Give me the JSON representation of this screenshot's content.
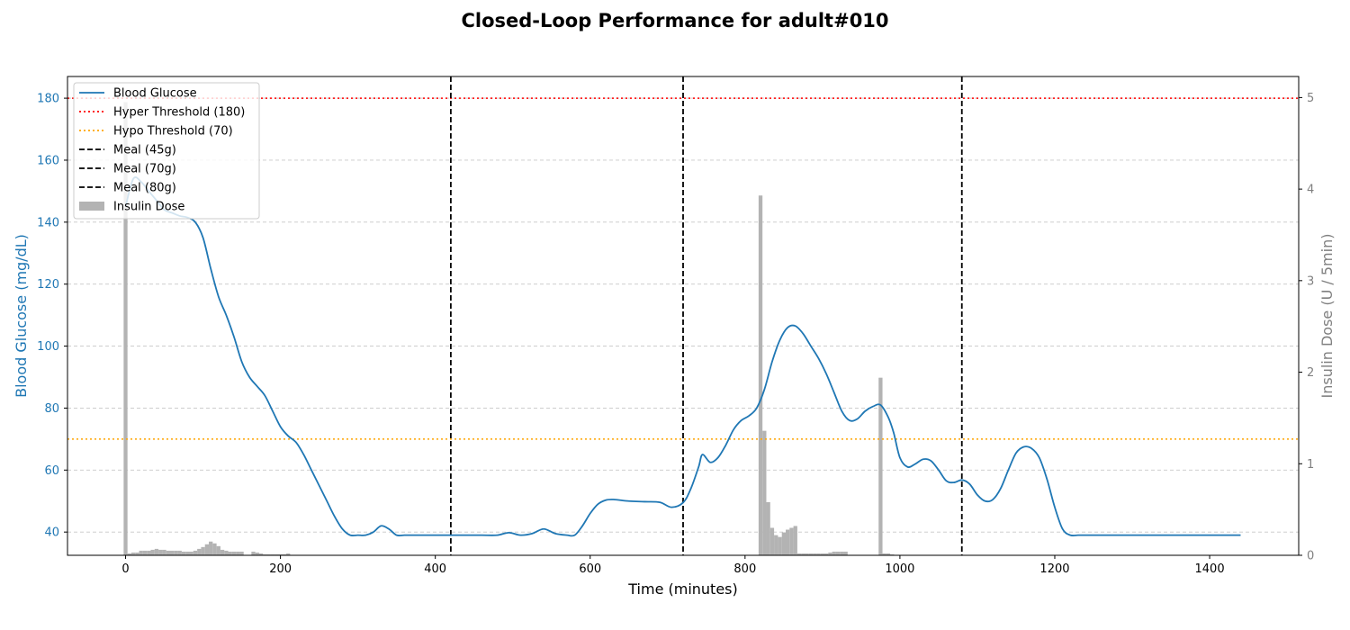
{
  "chart_data": {
    "type": "line",
    "title": "Closed-Loop Performance for adult#010",
    "xlabel": "Time (minutes)",
    "ylabel": "Blood Glucose (mg/dL)",
    "y2label": "Insulin Dose (U / 5min)",
    "xlim": [
      -75,
      1515
    ],
    "ylim": [
      32.5,
      187
    ],
    "y2lim": [
      0,
      5.23
    ],
    "x_ticks": [
      0,
      200,
      400,
      600,
      800,
      1000,
      1200,
      1400
    ],
    "y_ticks": [
      40,
      60,
      80,
      100,
      120,
      140,
      160,
      180
    ],
    "y2_ticks": [
      0,
      1,
      2,
      3,
      4,
      5
    ],
    "grid": "horizontal dashed",
    "legend_position": "top-left",
    "colors": {
      "glucose": "#1f77b4",
      "hyper": "#ff0000",
      "hypo": "#ffa500",
      "meal": "#000000",
      "insulin": "#b3b3b3",
      "y2_axis": "#808080"
    },
    "legend": [
      "Blood Glucose",
      "Hyper Threshold (180)",
      "Hypo Threshold (70)",
      "Meal (45g)",
      "Meal (70g)",
      "Meal (80g)",
      "Insulin Dose"
    ],
    "thresholds": {
      "hyper": 180,
      "hypo": 70
    },
    "meals": [
      {
        "label": "Meal (45g)",
        "x": 420
      },
      {
        "label": "Meal (70g)",
        "x": 720
      },
      {
        "label": "Meal (80g)",
        "x": 1080
      }
    ],
    "series": [
      {
        "name": "Blood Glucose",
        "x": [
          0,
          10,
          20,
          30,
          40,
          50,
          60,
          70,
          80,
          90,
          100,
          110,
          120,
          130,
          140,
          150,
          160,
          170,
          180,
          190,
          200,
          210,
          220,
          230,
          240,
          250,
          260,
          270,
          280,
          290,
          300,
          310,
          320,
          330,
          340,
          350,
          360,
          370,
          380,
          390,
          400,
          420,
          440,
          460,
          480,
          495,
          510,
          525,
          540,
          555,
          570,
          580,
          590,
          600,
          610,
          620,
          630,
          650,
          670,
          690,
          705,
          720,
          730,
          740,
          745,
          755,
          765,
          775,
          785,
          795,
          805,
          815,
          825,
          835,
          845,
          855,
          865,
          875,
          885,
          895,
          905,
          915,
          925,
          935,
          945,
          955,
          965,
          975,
          985,
          992,
          1000,
          1010,
          1020,
          1030,
          1040,
          1050,
          1060,
          1070,
          1080,
          1090,
          1100,
          1110,
          1120,
          1130,
          1140,
          1150,
          1160,
          1170,
          1180,
          1190,
          1200,
          1210,
          1220,
          1230,
          1240,
          1300,
          1350,
          1400,
          1440
        ],
        "values": [
          145,
          154,
          153,
          150,
          147,
          144,
          143,
          142,
          141.5,
          140,
          135,
          125,
          116,
          110,
          103,
          95,
          90,
          87,
          84,
          79,
          74,
          71,
          69,
          65,
          60,
          55,
          50,
          45,
          41,
          39,
          39,
          39,
          40,
          42,
          41,
          39,
          39,
          39,
          39,
          39,
          39,
          39,
          39,
          39,
          39,
          39.8,
          39,
          39.5,
          41,
          39.5,
          39,
          39,
          42,
          46,
          49,
          50.3,
          50.5,
          50,
          49.8,
          49.6,
          48,
          49.5,
          54,
          61,
          65,
          62.5,
          64,
          68,
          73,
          76,
          77.5,
          80,
          86,
          95,
          102,
          106,
          106.5,
          104,
          100,
          96,
          91,
          85,
          79,
          76,
          76.5,
          79,
          80.5,
          81,
          77,
          72,
          64,
          61,
          62,
          63.5,
          63,
          60,
          56.5,
          56,
          56.8,
          55.5,
          52,
          50,
          50.5,
          54,
          60,
          65.5,
          67.5,
          67,
          64,
          57,
          48,
          41,
          39,
          39,
          39,
          39,
          39,
          39,
          39
        ]
      },
      {
        "name": "Insulin Dose",
        "x": [
          0,
          5,
          10,
          15,
          20,
          25,
          30,
          35,
          40,
          45,
          50,
          55,
          60,
          65,
          70,
          75,
          80,
          85,
          90,
          95,
          100,
          105,
          110,
          115,
          120,
          125,
          130,
          135,
          140,
          145,
          150,
          155,
          160,
          165,
          170,
          175,
          180,
          185,
          190,
          195,
          200,
          205,
          210,
          215,
          220,
          225,
          230,
          235,
          240,
          245,
          250,
          815,
          820,
          825,
          830,
          835,
          840,
          845,
          850,
          855,
          860,
          865,
          870,
          875,
          880,
          885,
          890,
          895,
          900,
          905,
          910,
          915,
          920,
          925,
          930,
          935,
          940,
          975,
          980,
          985,
          990
        ],
        "values": [
          4.95,
          0.02,
          0.03,
          0.03,
          0.05,
          0.05,
          0.05,
          0.06,
          0.07,
          0.06,
          0.06,
          0.05,
          0.05,
          0.05,
          0.05,
          0.04,
          0.04,
          0.04,
          0.05,
          0.07,
          0.09,
          0.12,
          0.15,
          0.13,
          0.1,
          0.06,
          0.05,
          0.04,
          0.04,
          0.04,
          0.04,
          0,
          0,
          0.04,
          0.03,
          0.02,
          0.01,
          0.01,
          0.01,
          0.01,
          0.01,
          0.01,
          0.02,
          0,
          0,
          0,
          0,
          0,
          0,
          0,
          0,
          0,
          3.93,
          1.36,
          0.58,
          0.3,
          0.22,
          0.2,
          0.25,
          0.28,
          0.3,
          0.32,
          0.02,
          0.02,
          0.02,
          0.02,
          0.02,
          0.02,
          0.02,
          0.02,
          0.03,
          0.04,
          0.04,
          0.04,
          0.04,
          0,
          0,
          1.94,
          0.02,
          0.02,
          0.01
        ]
      }
    ]
  }
}
